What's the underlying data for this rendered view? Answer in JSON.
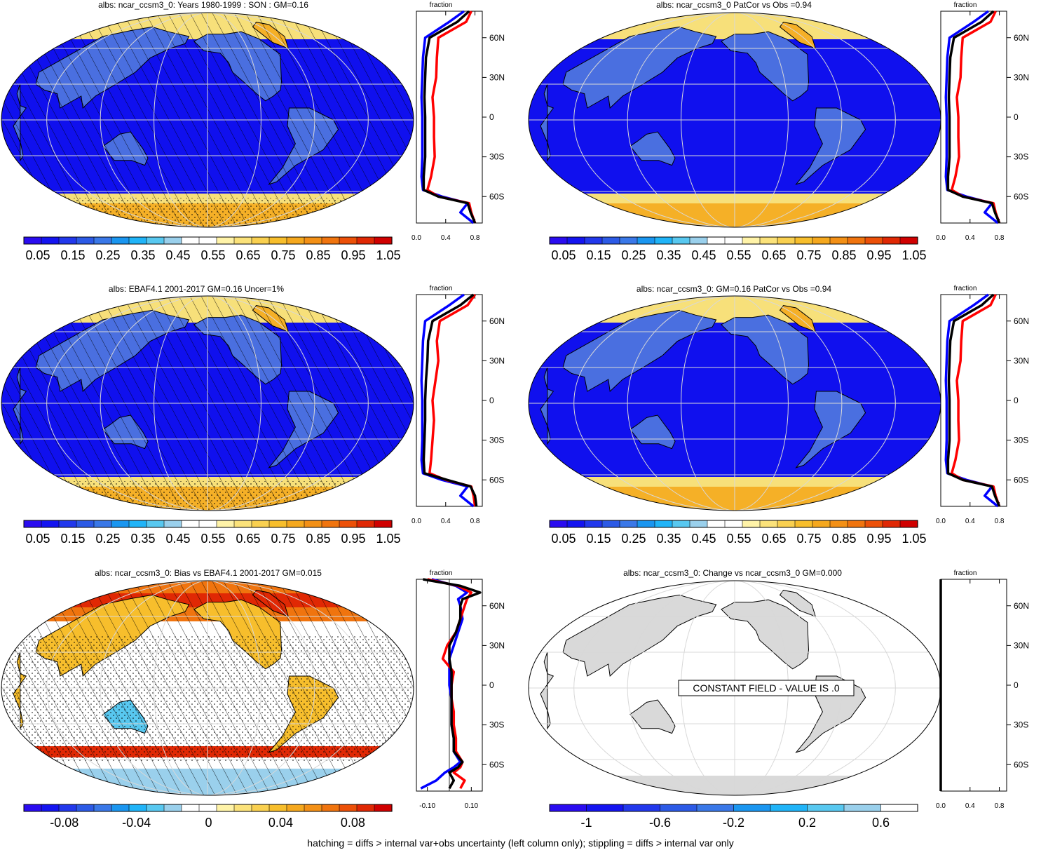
{
  "footer_note": "hatching = diffs > internal var+obs uncertainty (left column only); stippling = diffs > internal var only",
  "colors": {
    "ocean_dark": "#1010ee",
    "land_blue": "#4a6fe0",
    "ice_yellow": "#f7e07a",
    "ice_orange": "#f5b027",
    "gray_land": "#d9d9d9",
    "grid": "#d8d8d8"
  },
  "chart_data": [
    {
      "type": "heatmap",
      "title": "albs: ncar_ccsm3_0: Years 1980-1999 : SON : GM=0.16",
      "style": "abs",
      "hatched": true,
      "colorbar": {
        "labels": [
          "0.05",
          "0.15",
          "0.25",
          "0.35",
          "0.45",
          "0.55",
          "0.65",
          "0.75",
          "0.85",
          "0.95",
          "1.05"
        ]
      },
      "profile": {
        "label": "fraction",
        "xlim": [
          0.0,
          0.9
        ],
        "xticks": [
          "0.0",
          "0.4",
          "0.8"
        ],
        "yticks": [
          "60N",
          "30N",
          "0",
          "30S",
          "60S"
        ],
        "lat": [
          80,
          72,
          60,
          45,
          30,
          15,
          0,
          -15,
          -30,
          -45,
          -55,
          -60,
          -65,
          -72,
          -80
        ],
        "series": [
          {
            "color": "#0000ff",
            "values": [
              0.65,
              0.45,
              0.12,
              0.09,
              0.08,
              0.07,
              0.08,
              0.08,
              0.08,
              0.07,
              0.09,
              0.35,
              0.7,
              0.6,
              0.78
            ]
          },
          {
            "color": "#ff0000",
            "values": [
              0.75,
              0.68,
              0.3,
              0.28,
              0.27,
              0.22,
              0.24,
              0.24,
              0.25,
              0.2,
              0.15,
              0.3,
              0.72,
              0.75,
              0.8
            ]
          },
          {
            "color": "#000000",
            "values": [
              0.72,
              0.56,
              0.18,
              0.13,
              0.12,
              0.11,
              0.12,
              0.12,
              0.12,
              0.1,
              0.1,
              0.3,
              0.7,
              0.74,
              0.8
            ]
          }
        ]
      }
    },
    {
      "type": "heatmap",
      "title": "albs: ncar_ccsm3_0 PatCor vs Obs =0.94",
      "style": "abs",
      "hatched": false,
      "colorbar": {
        "labels": [
          "0.05",
          "0.15",
          "0.25",
          "0.35",
          "0.45",
          "0.55",
          "0.65",
          "0.75",
          "0.85",
          "0.95",
          "1.05"
        ]
      },
      "profile": {
        "label": "fraction",
        "xlim": [
          0.0,
          0.9
        ],
        "xticks": [
          "0.0",
          "0.4",
          "0.8"
        ],
        "yticks": [
          "60N",
          "30N",
          "0",
          "30S",
          "60S"
        ],
        "lat": [
          80,
          72,
          60,
          45,
          30,
          15,
          0,
          -15,
          -30,
          -45,
          -55,
          -60,
          -65,
          -72,
          -80
        ],
        "series": [
          {
            "color": "#0000ff",
            "values": [
              0.65,
              0.45,
              0.12,
              0.09,
              0.08,
              0.07,
              0.08,
              0.08,
              0.08,
              0.07,
              0.09,
              0.35,
              0.7,
              0.6,
              0.78
            ]
          },
          {
            "color": "#ff0000",
            "values": [
              0.75,
              0.68,
              0.3,
              0.28,
              0.27,
              0.22,
              0.24,
              0.24,
              0.25,
              0.2,
              0.15,
              0.3,
              0.72,
              0.75,
              0.8
            ]
          },
          {
            "color": "#000000",
            "values": [
              0.72,
              0.56,
              0.18,
              0.13,
              0.12,
              0.11,
              0.12,
              0.12,
              0.12,
              0.1,
              0.1,
              0.3,
              0.7,
              0.74,
              0.8
            ]
          }
        ]
      }
    },
    {
      "type": "heatmap",
      "title": "albs: EBAF4.1 2001-2017 GM=0.16 Uncer=1%",
      "style": "abs",
      "hatched": true,
      "colorbar": {
        "labels": [
          "0.05",
          "0.15",
          "0.25",
          "0.35",
          "0.45",
          "0.55",
          "0.65",
          "0.75",
          "0.85",
          "0.95",
          "1.05"
        ]
      },
      "profile": {
        "label": "fraction",
        "xlim": [
          0.0,
          0.9
        ],
        "xticks": [
          "0.0",
          "0.4",
          "0.8"
        ],
        "yticks": [
          "60N",
          "30N",
          "0",
          "30S",
          "60S"
        ],
        "lat": [
          80,
          72,
          60,
          45,
          30,
          15,
          0,
          -15,
          -30,
          -45,
          -55,
          -60,
          -65,
          -72,
          -80
        ],
        "series": [
          {
            "color": "#0000ff",
            "values": [
              0.65,
              0.45,
              0.12,
              0.09,
              0.08,
              0.07,
              0.08,
              0.08,
              0.08,
              0.07,
              0.09,
              0.35,
              0.7,
              0.6,
              0.78
            ]
          },
          {
            "color": "#ff0000",
            "values": [
              0.8,
              0.7,
              0.32,
              0.28,
              0.3,
              0.26,
              0.22,
              0.24,
              0.22,
              0.2,
              0.18,
              0.4,
              0.75,
              0.78,
              0.8
            ]
          },
          {
            "color": "#000000",
            "values": [
              0.78,
              0.6,
              0.22,
              0.16,
              0.15,
              0.13,
              0.12,
              0.12,
              0.11,
              0.1,
              0.11,
              0.42,
              0.74,
              0.8,
              0.82
            ]
          }
        ]
      }
    },
    {
      "type": "heatmap",
      "title": "albs: ncar_ccsm3_0: GM=0.16 PatCor vs Obs =0.94",
      "style": "abs",
      "hatched": false,
      "colorbar": {
        "labels": [
          "0.05",
          "0.15",
          "0.25",
          "0.35",
          "0.45",
          "0.55",
          "0.65",
          "0.75",
          "0.85",
          "0.95",
          "1.05"
        ]
      },
      "profile": {
        "label": "fraction",
        "xlim": [
          0.0,
          0.9
        ],
        "xticks": [
          "0.0",
          "0.4",
          "0.8"
        ],
        "yticks": [
          "60N",
          "30N",
          "0",
          "30S",
          "60S"
        ],
        "lat": [
          80,
          72,
          60,
          45,
          30,
          15,
          0,
          -15,
          -30,
          -45,
          -55,
          -60,
          -65,
          -72,
          -80
        ],
        "series": [
          {
            "color": "#0000ff",
            "values": [
              0.65,
              0.45,
              0.12,
              0.09,
              0.08,
              0.07,
              0.08,
              0.08,
              0.08,
              0.07,
              0.09,
              0.35,
              0.7,
              0.6,
              0.78
            ]
          },
          {
            "color": "#ff0000",
            "values": [
              0.75,
              0.68,
              0.3,
              0.28,
              0.27,
              0.22,
              0.24,
              0.24,
              0.25,
              0.2,
              0.15,
              0.3,
              0.72,
              0.75,
              0.8
            ]
          },
          {
            "color": "#000000",
            "values": [
              0.72,
              0.56,
              0.18,
              0.13,
              0.12,
              0.11,
              0.12,
              0.12,
              0.12,
              0.1,
              0.1,
              0.3,
              0.7,
              0.74,
              0.8
            ]
          }
        ]
      }
    },
    {
      "type": "heatmap",
      "title": "albs: ncar_ccsm3_0: Bias vs EBAF4.1 2001-2017  GM=0.015",
      "style": "bias",
      "hatched": true,
      "colorbar": {
        "labels": [
          "-0.08",
          "-0.04",
          "0",
          "0.04",
          "0.08"
        ]
      },
      "profile": {
        "label": "fraction",
        "xlim": [
          -0.15,
          0.15
        ],
        "xticks": [
          "-0.10",
          "0.10"
        ],
        "yticks": [
          "60N",
          "30N",
          "0",
          "30S",
          "60S"
        ],
        "lat": [
          80,
          75,
          70,
          65,
          60,
          50,
          40,
          30,
          20,
          10,
          0,
          -10,
          -20,
          -30,
          -40,
          -50,
          -58,
          -62,
          -66,
          -72,
          -78
        ],
        "series": [
          {
            "color": "#0000ff",
            "values": [
              -0.08,
              0.03,
              0.08,
              0.04,
              0.05,
              0.06,
              0.04,
              0.02,
              0.0,
              0.0,
              0.0,
              0.01,
              0.01,
              0.01,
              0.02,
              0.02,
              0.05,
              0.02,
              -0.02,
              -0.06,
              -0.13
            ]
          },
          {
            "color": "#ff0000",
            "values": [
              -0.1,
              0.04,
              0.1,
              0.08,
              0.07,
              0.05,
              0.03,
              -0.01,
              -0.03,
              0.02,
              0.01,
              0.01,
              0.02,
              0.02,
              0.03,
              0.03,
              0.06,
              0.05,
              0.02,
              0.07,
              0.05
            ]
          },
          {
            "color": "#000000",
            "values": [
              -0.12,
              0.05,
              0.14,
              0.06,
              0.05,
              0.05,
              0.03,
              0.0,
              0.0,
              0.01,
              0.01,
              0.01,
              0.01,
              0.01,
              0.02,
              0.02,
              0.06,
              0.04,
              0.0,
              0.02,
              0.0
            ]
          }
        ]
      }
    },
    {
      "type": "heatmap",
      "title": "albs: ncar_ccsm3_0: Change vs ncar_ccsm3_0 GM=0.000",
      "style": "constant",
      "hatched": false,
      "annotation": "CONSTANT FIELD - VALUE IS .0",
      "colorbar": {
        "labels": [
          "-1",
          "-0.6",
          "-0.2",
          "0.2",
          "0.6"
        ]
      },
      "profile": {
        "label": "fraction",
        "xlim": [
          0.0,
          0.9
        ],
        "xticks": [
          "0.0",
          "0.4",
          "0.8"
        ],
        "yticks": [
          "60N",
          "30N",
          "0",
          "30S",
          "60S"
        ],
        "lat": [
          80,
          -80
        ],
        "series": [
          {
            "color": "#000000",
            "values": [
              0.0,
              0.0
            ]
          }
        ]
      }
    }
  ]
}
